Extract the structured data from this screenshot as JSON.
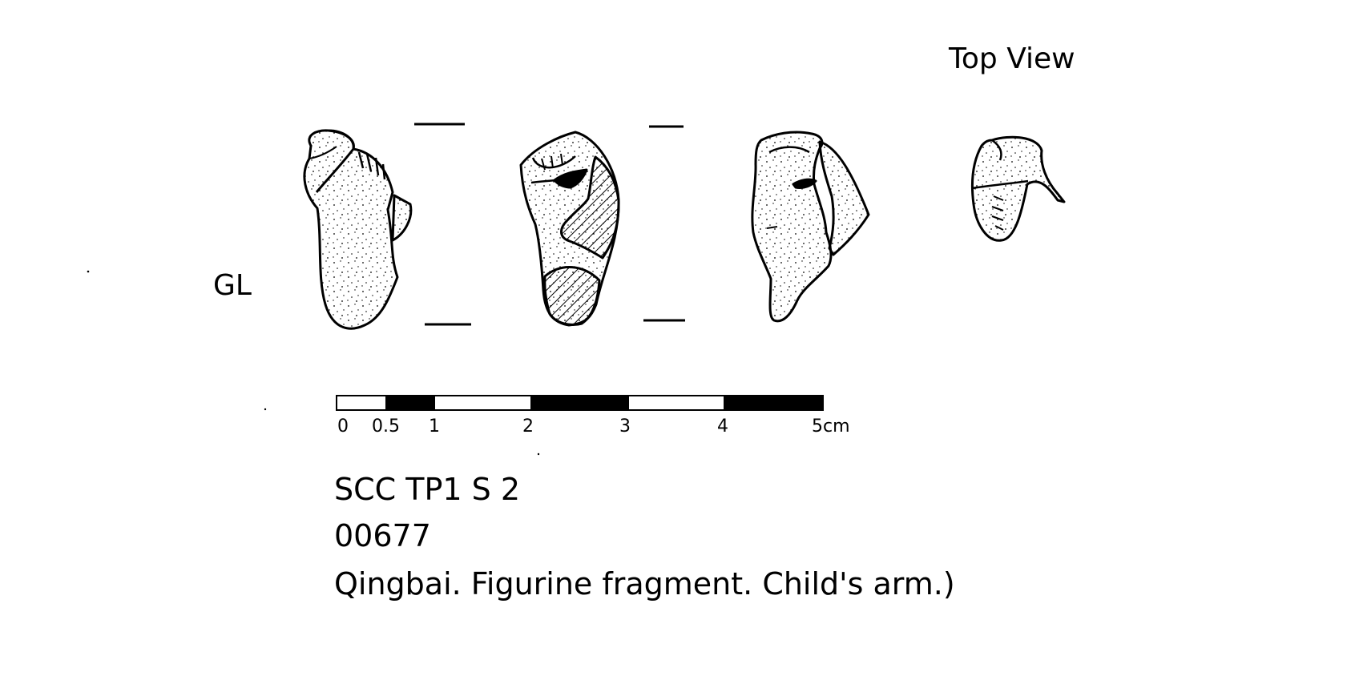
{
  "view_label": "GL",
  "top_view_label": "Top View",
  "scale_bar": {
    "ticks": [
      "0",
      "0.5",
      "1",
      "2",
      "3",
      "4",
      "5cm"
    ]
  },
  "caption": {
    "site": "SCC TP1 S 2",
    "number": "00677",
    "description": "Qingbai. Figurine fragment. Child's arm.)"
  },
  "colors": {
    "ink": "#000000",
    "paper": "#ffffff"
  }
}
